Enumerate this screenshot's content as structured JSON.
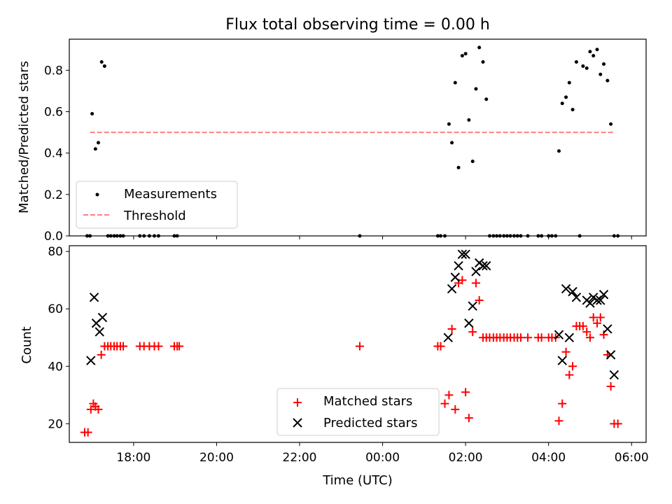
{
  "chart_data": [
    {
      "type": "scatter",
      "title": "Flux total observing time = 0.00 h",
      "xlabel": "",
      "ylabel": "Matched/Predicted stars",
      "xlim": [
        16.45,
        30.35
      ],
      "ylim": [
        0.0,
        0.95
      ],
      "yticks": [
        0.0,
        0.2,
        0.4,
        0.6,
        0.8
      ],
      "yticklabels": [
        "0.0",
        "0.2",
        "0.4",
        "0.6",
        "0.8"
      ],
      "legend_position": "lower-left",
      "series": [
        {
          "name": "Measurements",
          "color": "#000000",
          "marker": "dot",
          "x": [
            16.88,
            16.95,
            17.0,
            17.08,
            17.15,
            17.23,
            17.3,
            17.38,
            17.45,
            17.53,
            17.6,
            17.68,
            17.75,
            18.15,
            18.25,
            18.38,
            18.5,
            18.6,
            18.98,
            19.05,
            23.45,
            25.33,
            25.4,
            25.5,
            25.6,
            25.67,
            25.75,
            25.83,
            25.92,
            26.0,
            26.08,
            26.17,
            26.25,
            26.33,
            26.42,
            26.5,
            26.58,
            26.67,
            26.75,
            26.83,
            26.92,
            27.0,
            27.08,
            27.17,
            27.25,
            27.33,
            27.5,
            27.75,
            27.83,
            28.0,
            28.08,
            28.17,
            28.25,
            28.33,
            28.42,
            28.5,
            28.58,
            28.67,
            28.75,
            28.83,
            28.92,
            29.0,
            29.08,
            29.17,
            29.25,
            29.33,
            29.42,
            29.5,
            29.58,
            29.67
          ],
          "y": [
            0.0,
            0.0,
            0.59,
            0.42,
            0.45,
            0.84,
            0.82,
            0.0,
            0.0,
            0.0,
            0.0,
            0.0,
            0.0,
            0.0,
            0.0,
            0.0,
            0.0,
            0.0,
            0.0,
            0.0,
            0.0,
            0.0,
            0.0,
            0.0,
            0.54,
            0.45,
            0.74,
            0.33,
            0.87,
            0.88,
            0.56,
            0.36,
            0.71,
            0.91,
            0.84,
            0.66,
            0.0,
            0.0,
            0.0,
            0.0,
            0.0,
            0.0,
            0.0,
            0.0,
            0.0,
            0.0,
            0.0,
            0.0,
            0.0,
            0.0,
            0.0,
            0.0,
            0.41,
            0.64,
            0.67,
            0.74,
            0.61,
            0.84,
            0.0,
            0.82,
            0.81,
            0.89,
            0.87,
            0.9,
            0.78,
            0.83,
            0.75,
            0.54,
            0.0,
            0.0
          ]
        },
        {
          "name": "Threshold",
          "color": "#ff7f7f",
          "style": "dashed",
          "x": [
            16.95,
            29.6
          ],
          "y": [
            0.5,
            0.5
          ]
        }
      ]
    },
    {
      "type": "scatter",
      "title": "",
      "xlabel": "Time (UTC)",
      "ylabel": "Count",
      "xlim": [
        16.45,
        30.35
      ],
      "ylim": [
        13.5,
        82.0
      ],
      "xticks": [
        18,
        20,
        22,
        24,
        26,
        28,
        30
      ],
      "xticklabels": [
        "18:00",
        "20:00",
        "22:00",
        "00:00",
        "02:00",
        "04:00",
        "06:00"
      ],
      "yticks": [
        20,
        40,
        60,
        80
      ],
      "yticklabels": [
        "20",
        "40",
        "60",
        "80"
      ],
      "legend_position": "lower-center",
      "series": [
        {
          "name": "Matched stars",
          "color": "#ff0000",
          "marker": "plus",
          "x": [
            16.82,
            16.9,
            16.97,
            17.03,
            17.08,
            17.15,
            17.22,
            17.3,
            17.38,
            17.45,
            17.53,
            17.6,
            17.68,
            17.75,
            18.15,
            18.25,
            18.38,
            18.5,
            18.6,
            18.98,
            19.05,
            19.1,
            23.45,
            25.33,
            25.4,
            25.5,
            25.6,
            25.67,
            25.75,
            25.83,
            25.92,
            26.0,
            26.08,
            26.17,
            26.25,
            26.33,
            26.42,
            26.5,
            26.58,
            26.67,
            26.75,
            26.83,
            26.92,
            27.0,
            27.08,
            27.17,
            27.25,
            27.33,
            27.5,
            27.75,
            27.83,
            28.0,
            28.08,
            28.17,
            28.25,
            28.33,
            28.42,
            28.5,
            28.58,
            28.67,
            28.75,
            28.83,
            28.92,
            29.0,
            29.08,
            29.17,
            29.25,
            29.33,
            29.42,
            29.5,
            29.58,
            29.67
          ],
          "y": [
            17,
            17,
            25,
            27,
            26,
            25,
            44,
            47,
            47,
            47,
            47,
            47,
            47,
            47,
            47,
            47,
            47,
            47,
            47,
            47,
            47,
            47,
            47,
            47,
            47,
            27,
            30,
            53,
            25,
            69,
            70,
            31,
            22,
            52,
            69,
            63,
            50,
            50,
            50,
            50,
            50,
            50,
            50,
            50,
            50,
            50,
            50,
            50,
            50,
            50,
            50,
            50,
            50,
            50,
            21,
            27,
            45,
            37,
            40,
            54,
            54,
            54,
            52,
            50,
            57,
            55,
            57,
            51,
            44,
            33,
            20,
            20
          ]
        },
        {
          "name": "Predicted stars",
          "color": "#000000",
          "marker": "x",
          "x": [
            16.97,
            17.05,
            17.1,
            17.18,
            17.25,
            25.58,
            25.67,
            25.75,
            25.83,
            25.92,
            26.0,
            26.08,
            26.17,
            26.25,
            26.33,
            26.42,
            26.5,
            28.25,
            28.33,
            28.42,
            28.5,
            28.58,
            28.67,
            28.92,
            29.0,
            29.08,
            29.17,
            29.25,
            29.33,
            29.42,
            29.5,
            29.58
          ],
          "y": [
            42,
            64,
            55,
            52,
            57,
            50,
            67,
            71,
            75,
            79,
            79,
            55,
            61,
            73,
            76,
            75,
            75,
            51,
            42,
            67,
            50,
            66,
            64,
            63,
            62,
            64,
            63,
            63,
            65,
            53,
            44,
            37
          ]
        }
      ]
    }
  ]
}
